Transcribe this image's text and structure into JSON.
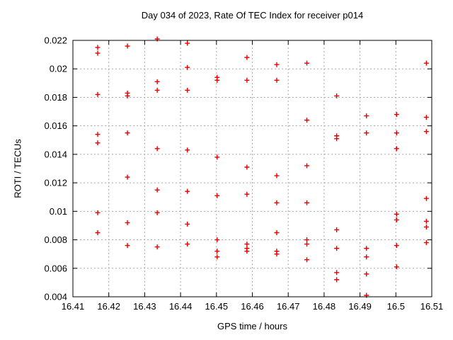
{
  "window": {
    "background": "#ffffff"
  },
  "chart_data": {
    "type": "scatter",
    "title": "Day 034 of 2023, Rate Of TEC Index for receiver p014",
    "xlabel": "GPS time / hours",
    "ylabel": "ROTI / TECUs",
    "xlim": [
      16.41,
      16.51
    ],
    "ylim": [
      0.004,
      0.022
    ],
    "xticks": {
      "values": [
        16.41,
        16.42,
        16.43,
        16.44,
        16.45,
        16.46,
        16.47,
        16.48,
        16.49,
        16.5,
        16.51
      ],
      "labels": [
        "16.41",
        "16.42",
        "16.43",
        "16.44",
        "16.45",
        "16.46",
        "16.47",
        "16.48",
        "16.49",
        "16.5",
        "16.51"
      ]
    },
    "yticks": {
      "values": [
        0.004,
        0.006,
        0.008,
        0.01,
        0.012,
        0.014,
        0.016,
        0.018,
        0.02,
        0.022
      ],
      "labels": [
        "0.004",
        "0.006",
        "0.008",
        "0.01",
        "0.012",
        "0.014",
        "0.016",
        "0.018",
        "0.02",
        "0.022"
      ]
    },
    "grid": true,
    "legend_position": "none",
    "marker": "plus",
    "colors": {
      "marker": "#e60000",
      "grid": "#a8a8a8",
      "axis": "#000000",
      "text": "#000000"
    },
    "series": [
      {
        "name": "roti",
        "points": [
          [
            16.4169,
            0.0215
          ],
          [
            16.4169,
            0.0211
          ],
          [
            16.4169,
            0.0182
          ],
          [
            16.4169,
            0.0154
          ],
          [
            16.4169,
            0.0148
          ],
          [
            16.4169,
            0.0099
          ],
          [
            16.4169,
            0.0085
          ],
          [
            16.4252,
            0.0216
          ],
          [
            16.4252,
            0.0183
          ],
          [
            16.4252,
            0.0181
          ],
          [
            16.4252,
            0.0155
          ],
          [
            16.4252,
            0.0124
          ],
          [
            16.4252,
            0.0092
          ],
          [
            16.4252,
            0.0076
          ],
          [
            16.4335,
            0.0221
          ],
          [
            16.4335,
            0.0191
          ],
          [
            16.4335,
            0.0185
          ],
          [
            16.4335,
            0.0144
          ],
          [
            16.4335,
            0.0115
          ],
          [
            16.4335,
            0.0099
          ],
          [
            16.4335,
            0.0075
          ],
          [
            16.4419,
            0.0218
          ],
          [
            16.4419,
            0.0201
          ],
          [
            16.4419,
            0.0185
          ],
          [
            16.4419,
            0.0143
          ],
          [
            16.4419,
            0.0114
          ],
          [
            16.4419,
            0.0091
          ],
          [
            16.4419,
            0.0077
          ],
          [
            16.4502,
            0.0194
          ],
          [
            16.4502,
            0.0192
          ],
          [
            16.4502,
            0.0138
          ],
          [
            16.4502,
            0.0111
          ],
          [
            16.4502,
            0.008
          ],
          [
            16.4502,
            0.0072
          ],
          [
            16.4502,
            0.0068
          ],
          [
            16.4585,
            0.0208
          ],
          [
            16.4585,
            0.0192
          ],
          [
            16.4585,
            0.0131
          ],
          [
            16.4585,
            0.0112
          ],
          [
            16.4585,
            0.0077
          ],
          [
            16.4585,
            0.0074
          ],
          [
            16.4585,
            0.0072
          ],
          [
            16.4668,
            0.0203
          ],
          [
            16.4668,
            0.0192
          ],
          [
            16.4668,
            0.0125
          ],
          [
            16.4668,
            0.0106
          ],
          [
            16.4668,
            0.0085
          ],
          [
            16.4668,
            0.0072
          ],
          [
            16.4668,
            0.007
          ],
          [
            16.4752,
            0.0204
          ],
          [
            16.4752,
            0.0164
          ],
          [
            16.4752,
            0.0132
          ],
          [
            16.4752,
            0.0106
          ],
          [
            16.4752,
            0.008
          ],
          [
            16.4752,
            0.0077
          ],
          [
            16.4752,
            0.0066
          ],
          [
            16.4835,
            0.0181
          ],
          [
            16.4835,
            0.0153
          ],
          [
            16.4835,
            0.0151
          ],
          [
            16.4835,
            0.0087
          ],
          [
            16.4835,
            0.0074
          ],
          [
            16.4835,
            0.0057
          ],
          [
            16.4835,
            0.0052
          ],
          [
            16.4918,
            0.0167
          ],
          [
            16.4918,
            0.0155
          ],
          [
            16.4918,
            0.0074
          ],
          [
            16.4918,
            0.0068
          ],
          [
            16.4918,
            0.0056
          ],
          [
            16.4918,
            0.0041
          ],
          [
            16.5002,
            0.0168
          ],
          [
            16.5002,
            0.0155
          ],
          [
            16.5002,
            0.0144
          ],
          [
            16.5002,
            0.0098
          ],
          [
            16.5002,
            0.0094
          ],
          [
            16.5002,
            0.0076
          ],
          [
            16.5002,
            0.0061
          ],
          [
            16.5085,
            0.0204
          ],
          [
            16.5085,
            0.0166
          ],
          [
            16.5085,
            0.0156
          ],
          [
            16.5085,
            0.0109
          ],
          [
            16.5085,
            0.0093
          ],
          [
            16.5085,
            0.0089
          ],
          [
            16.5085,
            0.0078
          ]
        ]
      }
    ]
  }
}
